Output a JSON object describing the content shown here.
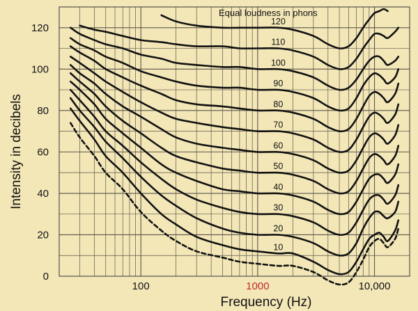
{
  "chart_data": {
    "type": "line",
    "annotation": "Equal loudness in phons",
    "xlabel": "Frequency (Hz)",
    "ylabel": "Intensity in decibels",
    "x_scale": "log",
    "xlim": [
      20,
      20000
    ],
    "ylim": [
      0,
      130
    ],
    "grid": true,
    "x_ticks": [
      {
        "value": 100,
        "label": "100",
        "color": "#111111"
      },
      {
        "value": 1000,
        "label": "1000",
        "color": "#c0282d"
      },
      {
        "value": 10000,
        "label": "10,000",
        "color": "#111111"
      }
    ],
    "y_ticks": [
      {
        "value": 0,
        "label": "0"
      },
      {
        "value": 20,
        "label": "20"
      },
      {
        "value": 40,
        "label": "40"
      },
      {
        "value": 60,
        "label": "60"
      },
      {
        "value": 80,
        "label": "80"
      },
      {
        "value": 100,
        "label": "100"
      },
      {
        "value": 120,
        "label": "120"
      }
    ],
    "threshold": {
      "style": "dashed",
      "x": [
        25,
        30,
        40,
        50,
        70,
        100,
        150,
        200,
        300,
        500,
        700,
        1000,
        1500,
        2000,
        3000,
        4000,
        5000,
        6000,
        7000,
        8000,
        9000,
        10000,
        11000,
        12000,
        13000,
        15000,
        16000
      ],
      "y": [
        74,
        67,
        58,
        50,
        42,
        31,
        22,
        17,
        12,
        9,
        7,
        6,
        5,
        5,
        2,
        -2,
        -4,
        -3,
        2,
        8,
        14,
        17,
        18,
        16,
        14,
        18,
        23
      ]
    },
    "series": [
      {
        "label": "10",
        "x": [
          25,
          30,
          40,
          50,
          70,
          100,
          150,
          200,
          300,
          500,
          700,
          1000,
          1500,
          2000,
          3000,
          4000,
          5000,
          6000,
          7000,
          8000,
          9000,
          10000,
          11000,
          12000,
          13000,
          15000,
          16000
        ],
        "y": [
          81,
          75,
          66,
          58,
          50,
          40,
          30,
          25,
          19,
          15,
          13,
          12,
          11,
          11,
          7,
          3,
          1,
          2,
          7,
          13,
          18,
          20,
          21,
          19,
          17,
          22,
          27
        ]
      },
      {
        "label": "20",
        "x": [
          25,
          30,
          40,
          50,
          70,
          100,
          150,
          200,
          300,
          500,
          700,
          1000,
          1500,
          2000,
          3000,
          4000,
          5000,
          6000,
          7000,
          8000,
          9000,
          10000,
          11000,
          12000,
          13000,
          15000,
          16000
        ],
        "y": [
          86,
          80,
          72,
          65,
          57,
          48,
          39,
          34,
          28,
          23,
          21,
          20,
          20,
          19,
          16,
          12,
          10,
          11,
          16,
          23,
          28,
          31,
          31,
          29,
          28,
          31,
          36
        ]
      },
      {
        "label": "30",
        "x": [
          25,
          30,
          40,
          50,
          70,
          100,
          150,
          200,
          300,
          500,
          700,
          1000,
          1500,
          2000,
          3000,
          4000,
          5000,
          6000,
          7000,
          8000,
          9000,
          10000,
          11000,
          12000,
          13000,
          15000,
          16000
        ],
        "y": [
          90,
          85,
          77,
          70,
          63,
          55,
          47,
          42,
          37,
          33,
          31,
          30,
          30,
          29,
          26,
          22,
          20,
          21,
          26,
          32,
          37,
          39,
          39,
          37,
          35,
          39,
          44
        ]
      },
      {
        "label": "40",
        "x": [
          25,
          30,
          40,
          50,
          70,
          100,
          150,
          200,
          300,
          500,
          700,
          1000,
          1500,
          2000,
          3000,
          4000,
          5000,
          6000,
          7000,
          8000,
          9000,
          10000,
          11000,
          12000,
          13000,
          15000,
          16000
        ],
        "y": [
          94,
          90,
          83,
          76,
          69,
          62,
          54,
          50,
          46,
          42,
          41,
          40,
          40,
          39,
          36,
          32,
          30,
          31,
          36,
          42,
          47,
          49,
          49,
          47,
          45,
          49,
          54
        ]
      },
      {
        "label": "50",
        "x": [
          25,
          30,
          40,
          50,
          70,
          100,
          150,
          200,
          300,
          500,
          700,
          1000,
          1500,
          2000,
          3000,
          4000,
          5000,
          6000,
          7000,
          8000,
          9000,
          10000,
          11000,
          12000,
          13000,
          15000,
          16000
        ],
        "y": [
          98,
          94,
          88,
          82,
          75,
          69,
          62,
          58,
          55,
          52,
          51,
          50,
          50,
          49,
          46,
          42,
          40,
          41,
          46,
          52,
          57,
          59,
          58,
          56,
          54,
          58,
          63
        ]
      },
      {
        "label": "60",
        "x": [
          25,
          30,
          40,
          50,
          70,
          100,
          150,
          200,
          300,
          500,
          700,
          1000,
          1500,
          2000,
          3000,
          4000,
          5000,
          6000,
          7000,
          8000,
          9000,
          10000,
          11000,
          12000,
          13000,
          15000,
          16000
        ],
        "y": [
          102,
          98,
          93,
          88,
          82,
          77,
          71,
          67,
          64,
          62,
          61,
          60,
          60,
          59,
          56,
          52,
          50,
          51,
          56,
          62,
          67,
          69,
          68,
          66,
          64,
          68,
          73
        ]
      },
      {
        "label": "70",
        "x": [
          25,
          30,
          40,
          50,
          70,
          100,
          150,
          200,
          300,
          500,
          700,
          1000,
          1500,
          2000,
          3000,
          4000,
          5000,
          6000,
          7000,
          8000,
          9000,
          10000,
          11000,
          12000,
          13000,
          15000,
          16000
        ],
        "y": [
          106,
          103,
          98,
          94,
          89,
          84,
          79,
          76,
          74,
          72,
          71,
          70,
          70,
          69,
          66,
          62,
          60,
          61,
          66,
          72,
          77,
          79,
          78,
          76,
          74,
          78,
          83
        ]
      },
      {
        "label": "80",
        "x": [
          25,
          30,
          40,
          50,
          70,
          100,
          150,
          200,
          300,
          500,
          700,
          1000,
          1500,
          2000,
          3000,
          4000,
          5000,
          6000,
          7000,
          8000,
          9000,
          10000,
          11000,
          12000,
          13000,
          15000,
          16000
        ],
        "y": [
          111,
          108,
          104,
          100,
          96,
          92,
          88,
          85,
          83,
          82,
          81,
          80,
          80,
          79,
          76,
          72,
          70,
          71,
          76,
          82,
          87,
          89,
          88,
          86,
          84,
          88,
          93
        ]
      },
      {
        "label": "90",
        "x": [
          25,
          30,
          40,
          50,
          70,
          100,
          150,
          200,
          300,
          500,
          700,
          1000,
          1500,
          2000,
          3000,
          4000,
          5000,
          6000,
          7000,
          8000,
          9000,
          10000,
          11000,
          12000,
          13000,
          15000,
          16000
        ],
        "y": [
          115,
          112,
          109,
          106,
          103,
          99,
          96,
          94,
          92,
          91,
          91,
          90,
          90,
          89,
          86,
          82,
          80,
          81,
          86,
          92,
          96,
          98,
          97,
          95,
          93,
          96,
          100
        ]
      },
      {
        "label": "100",
        "x": [
          25,
          30,
          40,
          50,
          70,
          100,
          150,
          200,
          300,
          500,
          700,
          1000,
          1500,
          2000,
          3000,
          4000,
          5000,
          6000,
          7000,
          8000,
          9000,
          10000,
          11000,
          12000,
          13000,
          15000,
          16000
        ],
        "y": [
          120,
          117,
          114,
          112,
          110,
          107,
          105,
          103,
          102,
          101,
          101,
          100,
          100,
          99,
          96,
          92,
          90,
          91,
          95,
          100,
          104,
          106,
          106,
          104,
          102,
          104,
          106
        ]
      },
      {
        "label": "110",
        "x": [
          30,
          40,
          50,
          70,
          100,
          150,
          200,
          300,
          500,
          700,
          1000,
          1500,
          2000,
          3000,
          4000,
          5000,
          6000,
          7000,
          8000,
          9000,
          10000,
          11000,
          12000,
          13000,
          15000,
          16000
        ],
        "y": [
          121,
          119,
          118,
          116,
          114,
          113,
          112,
          111,
          111,
          110,
          110,
          110,
          109,
          106,
          102,
          100,
          101,
          105,
          110,
          114,
          117,
          117,
          116,
          115,
          118,
          120
        ]
      },
      {
        "label": "120",
        "x": [
          150,
          200,
          300,
          500,
          700,
          1000,
          1500,
          2000,
          3000,
          4000,
          5000,
          6000,
          7000,
          8000,
          9000,
          10000,
          11000,
          12000,
          13000
        ],
        "y": [
          126,
          123,
          121,
          120,
          120,
          120,
          120,
          119,
          116,
          112,
          110,
          111,
          115,
          120,
          124,
          127,
          128,
          129,
          128
        ]
      }
    ]
  }
}
